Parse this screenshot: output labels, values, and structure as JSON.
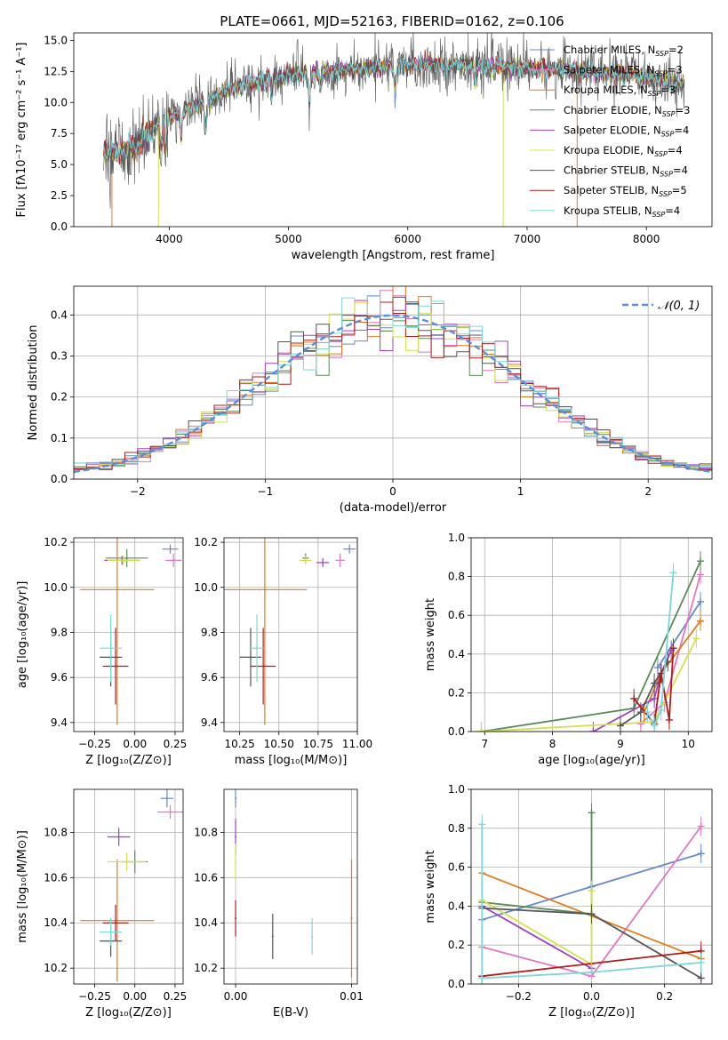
{
  "title": "PLATE=0661, MJD=52163, FIBERID=0162, z=0.106",
  "colors": {
    "Chabrier MILES": "#6688cc",
    "Salpeter MILES": "#e377c2",
    "Kroupa MILES": "#e07b20",
    "Chabrier ELODIE": "#5a8a5a",
    "Salpeter ELODIE": "#a040c0",
    "Kroupa ELODIE": "#d4e04a",
    "Chabrier STELIB": "#555555",
    "Salpeter STELIB": "#b01c1c",
    "Kroupa STELIB": "#7fd6d6"
  },
  "legend": [
    {
      "key": "Chabrier MILES",
      "label": "Chabrier MILES, N",
      "sub": "SSP",
      "tail": "=2"
    },
    {
      "key": "Salpeter MILES",
      "label": "Salpeter MILES, N",
      "sub": "SSP",
      "tail": "=3"
    },
    {
      "key": "Kroupa MILES",
      "label": "Kroupa MILES, N",
      "sub": "SSP",
      "tail": "=3"
    },
    {
      "key": "Chabrier ELODIE",
      "label": "Chabrier ELODIE, N",
      "sub": "SSP",
      "tail": "=3"
    },
    {
      "key": "Salpeter ELODIE",
      "label": "Salpeter ELODIE, N",
      "sub": "SSP",
      "tail": "=4"
    },
    {
      "key": "Kroupa ELODIE",
      "label": "Kroupa ELODIE, N",
      "sub": "SSP",
      "tail": "=4"
    },
    {
      "key": "Chabrier STELIB",
      "label": "Chabrier STELIB, N",
      "sub": "SSP",
      "tail": "=4"
    },
    {
      "key": "Salpeter STELIB",
      "label": "Salpeter STELIB, N",
      "sub": "SSP",
      "tail": "=5"
    },
    {
      "key": "Kroupa STELIB",
      "label": "Kroupa STELIB, N",
      "sub": "SSP",
      "tail": "=4"
    }
  ],
  "chart_data": [
    {
      "id": "spectrum",
      "type": "line",
      "xlabel": "wavelength [Angstrom, rest frame]",
      "ylabel": "Flux [fλ10⁻¹⁷ erg cm⁻² s⁻¹ A⁻¹]",
      "xlim": [
        3200,
        8550
      ],
      "ylim": [
        0,
        15.6
      ],
      "xticks": [
        4000,
        5000,
        6000,
        7000,
        8000
      ],
      "yticks": [
        0.0,
        2.5,
        5.0,
        7.5,
        10.0,
        12.5,
        15.0
      ],
      "grid": false,
      "continuum": [
        [
          3450,
          6.0
        ],
        [
          3700,
          6.3
        ],
        [
          3900,
          8.3
        ],
        [
          4100,
          9.3
        ],
        [
          4300,
          10.0
        ],
        [
          4500,
          11.0
        ],
        [
          4800,
          11.8
        ],
        [
          5100,
          12.3
        ],
        [
          5500,
          12.6
        ],
        [
          6000,
          13.0
        ],
        [
          6500,
          13.0
        ],
        [
          7000,
          12.8
        ],
        [
          7500,
          12.5
        ],
        [
          8000,
          12.1
        ],
        [
          8300,
          11.5
        ]
      ],
      "dips": [
        [
          3933,
          2.0
        ],
        [
          3968,
          2.0
        ],
        [
          4101,
          2.0
        ],
        [
          4305,
          2.5
        ],
        [
          4861,
          1.5
        ],
        [
          5175,
          2.5
        ],
        [
          5270,
          1.2
        ],
        [
          5892,
          2.0
        ],
        [
          6563,
          1.5
        ],
        [
          8542,
          1.0
        ]
      ],
      "drops": [
        [
          3520,
          "Kroupa MILES"
        ],
        [
          3910,
          "Kroupa ELODIE"
        ],
        [
          6800,
          "Kroupa ELODIE"
        ],
        [
          7420,
          "Kroupa MILES"
        ]
      ]
    },
    {
      "id": "residuals",
      "type": "histogram",
      "xlabel": "(data-model)/error",
      "ylabel": "Normed distribution",
      "xlim": [
        -2.5,
        2.5
      ],
      "ylim": [
        0,
        0.47
      ],
      "xticks": [
        -2,
        -1,
        0,
        1,
        2
      ],
      "yticks": [
        0.0,
        0.1,
        0.2,
        0.3,
        0.4
      ],
      "grid": true,
      "bins": 50,
      "reference": {
        "label": "𝒩(0, 1)",
        "mu": 0,
        "sigma": 1
      }
    },
    {
      "id": "age-Z",
      "type": "scatter",
      "xlabel": "Z [log₁₀(Z/Z⊙)]",
      "ylabel": "age  [log₁₀(age/yr)]",
      "xlim": [
        -0.38,
        0.3
      ],
      "ylim": [
        9.36,
        10.22
      ],
      "xticks": [
        -0.25,
        0.0,
        0.25
      ],
      "yticks": [
        9.4,
        9.6,
        9.8,
        10.0,
        10.2
      ],
      "grid": true,
      "points": [
        {
          "key": "Chabrier MILES",
          "x": 0.22,
          "y": 10.17,
          "xerr": 0.05,
          "yerr": 0.02
        },
        {
          "key": "Salpeter MILES",
          "x": 0.24,
          "y": 10.12,
          "xerr": 0.05,
          "yerr": 0.03
        },
        {
          "key": "Kroupa MILES",
          "x": -0.11,
          "y": 9.99,
          "xerr": 0.23,
          "yerr": 0.6
        },
        {
          "key": "Chabrier ELODIE",
          "x": -0.05,
          "y": 10.13,
          "xerr": 0.13,
          "yerr": 0.04
        },
        {
          "key": "Salpeter ELODIE",
          "x": -0.08,
          "y": 10.12,
          "xerr": 0.11,
          "yerr": 0.02
        },
        {
          "key": "Kroupa ELODIE",
          "x": -0.07,
          "y": 10.12,
          "xerr": 0.1,
          "yerr": 0.02
        },
        {
          "key": "Chabrier STELIB",
          "x": -0.15,
          "y": 9.69,
          "xerr": 0.07,
          "yerr": 0.13
        },
        {
          "key": "Salpeter STELIB",
          "x": -0.12,
          "y": 9.65,
          "xerr": 0.08,
          "yerr": 0.17
        },
        {
          "key": "Kroupa STELIB",
          "x": -0.15,
          "y": 9.73,
          "xerr": 0.07,
          "yerr": 0.15
        }
      ]
    },
    {
      "id": "age-mass",
      "type": "scatter",
      "xlabel": "mass [log₁₀(M/M⊙)]",
      "ylabel": "",
      "xlim": [
        10.15,
        11.0
      ],
      "ylim": [
        9.36,
        10.22
      ],
      "xticks": [
        10.25,
        10.5,
        10.75,
        11.0
      ],
      "yticks": [
        9.4,
        9.6,
        9.8,
        10.0,
        10.2
      ],
      "grid": true,
      "points": [
        {
          "key": "Chabrier MILES",
          "x": 10.95,
          "y": 10.17,
          "xerr": 0.04,
          "yerr": 0.02
        },
        {
          "key": "Salpeter MILES",
          "x": 10.89,
          "y": 10.12,
          "xerr": 0.03,
          "yerr": 0.03
        },
        {
          "key": "Kroupa MILES",
          "x": 10.41,
          "y": 9.99,
          "xerr": 0.27,
          "yerr": 0.6
        },
        {
          "key": "Chabrier ELODIE",
          "x": 10.67,
          "y": 10.13,
          "xerr": 0.02,
          "yerr": 0.02
        },
        {
          "key": "Salpeter ELODIE",
          "x": 10.78,
          "y": 10.11,
          "xerr": 0.04,
          "yerr": 0.02
        },
        {
          "key": "Kroupa ELODIE",
          "x": 10.67,
          "y": 10.12,
          "xerr": 0.04,
          "yerr": 0.02
        },
        {
          "key": "Chabrier STELIB",
          "x": 10.32,
          "y": 9.69,
          "xerr": 0.07,
          "yerr": 0.13
        },
        {
          "key": "Salpeter STELIB",
          "x": 10.4,
          "y": 9.65,
          "xerr": 0.08,
          "yerr": 0.17
        },
        {
          "key": "Kroupa STELIB",
          "x": 10.36,
          "y": 9.73,
          "xerr": 0.05,
          "yerr": 0.15
        }
      ]
    },
    {
      "id": "weight-age",
      "type": "line",
      "xlabel": "age  [log₁₀(age/yr)]",
      "ylabel": "mass weight",
      "xlim": [
        6.8,
        10.35
      ],
      "ylim": [
        0,
        1.0
      ],
      "xticks": [
        7,
        8,
        9,
        10
      ],
      "yticks": [
        0.0,
        0.2,
        0.4,
        0.6,
        0.8,
        1.0
      ],
      "grid": true,
      "series": [
        {
          "key": "Chabrier MILES",
          "points": [
            [
              9.55,
              0.33
            ],
            [
              10.18,
              0.67
            ]
          ]
        },
        {
          "key": "Salpeter MILES",
          "points": [
            [
              9.3,
              0.04
            ],
            [
              9.65,
              0.15
            ],
            [
              10.18,
              0.81
            ]
          ]
        },
        {
          "key": "Kroupa MILES",
          "points": [
            [
              9.35,
              0.1
            ],
            [
              9.6,
              0.3
            ],
            [
              10.18,
              0.57
            ]
          ]
        },
        {
          "key": "Chabrier ELODIE",
          "points": [
            [
              6.95,
              0.0
            ],
            [
              9.2,
              0.12
            ],
            [
              10.18,
              0.88
            ]
          ]
        },
        {
          "key": "Salpeter ELODIE",
          "points": [
            [
              8.6,
              0.0
            ],
            [
              9.5,
              0.17
            ],
            [
              9.6,
              0.3
            ],
            [
              9.75,
              0.42
            ]
          ]
        },
        {
          "key": "Kroupa ELODIE",
          "points": [
            [
              6.95,
              0.0
            ],
            [
              9.5,
              0.05
            ],
            [
              10.12,
              0.48
            ]
          ]
        },
        {
          "key": "Chabrier STELIB",
          "points": [
            [
              9.0,
              0.03
            ],
            [
              9.3,
              0.1
            ],
            [
              9.5,
              0.25
            ],
            [
              9.7,
              0.36
            ]
          ]
        },
        {
          "key": "Salpeter STELIB",
          "points": [
            [
              9.2,
              0.17
            ],
            [
              9.5,
              0.04
            ],
            [
              9.6,
              0.3
            ],
            [
              9.72,
              0.06
            ],
            [
              9.78,
              0.43
            ]
          ]
        },
        {
          "key": "Kroupa STELIB",
          "points": [
            [
              9.4,
              0.1
            ],
            [
              9.5,
              0.03
            ],
            [
              9.6,
              0.11
            ],
            [
              9.78,
              0.82
            ]
          ]
        }
      ]
    },
    {
      "id": "mass-Z",
      "type": "scatter",
      "xlabel": "Z [log₁₀(Z/Z⊙)]",
      "ylabel": "mass [log₁₀(M/M⊙)]",
      "xlim": [
        -0.38,
        0.3
      ],
      "ylim": [
        10.13,
        10.99
      ],
      "xticks": [
        -0.25,
        0.0,
        0.25
      ],
      "yticks": [
        10.2,
        10.4,
        10.6,
        10.8
      ],
      "grid": true,
      "points": [
        {
          "key": "Chabrier MILES",
          "x": 0.2,
          "y": 10.95,
          "xerr": 0.04,
          "yerr": 0.04
        },
        {
          "key": "Salpeter MILES",
          "x": 0.22,
          "y": 10.89,
          "xerr": 0.08,
          "yerr": 0.03
        },
        {
          "key": "Kroupa MILES",
          "x": -0.11,
          "y": 10.41,
          "xerr": 0.23,
          "yerr": 0.27
        },
        {
          "key": "Chabrier ELODIE",
          "x": 0.0,
          "y": 10.67,
          "xerr": 0.08,
          "yerr": 0.05
        },
        {
          "key": "Salpeter ELODIE",
          "x": -0.1,
          "y": 10.78,
          "xerr": 0.07,
          "yerr": 0.04
        },
        {
          "key": "Kroupa ELODIE",
          "x": -0.05,
          "y": 10.67,
          "xerr": 0.12,
          "yerr": 0.04
        },
        {
          "key": "Chabrier STELIB",
          "x": -0.15,
          "y": 10.32,
          "xerr": 0.07,
          "yerr": 0.07
        },
        {
          "key": "Salpeter STELIB",
          "x": -0.12,
          "y": 10.4,
          "xerr": 0.08,
          "yerr": 0.08
        },
        {
          "key": "Kroupa STELIB",
          "x": -0.15,
          "y": 10.36,
          "xerr": 0.07,
          "yerr": 0.06
        }
      ]
    },
    {
      "id": "mass-EBV",
      "type": "scatter",
      "xlabel": "E(B-V)",
      "ylabel": "",
      "xlim": [
        -0.001,
        0.0105
      ],
      "ylim": [
        10.13,
        10.99
      ],
      "xticks": [
        0.0,
        0.01
      ],
      "xtick_labels": [
        "0.00",
        "0.01"
      ],
      "yticks": [
        10.2,
        10.4,
        10.6,
        10.8
      ],
      "grid": true,
      "points": [
        {
          "key": "Chabrier MILES",
          "x": 0.0,
          "y": 10.95,
          "xerr": 0,
          "yerr": 0.04
        },
        {
          "key": "Salpeter ELODIE",
          "x": 0.0,
          "y": 10.78,
          "xerr": 0,
          "yerr": 0.08
        },
        {
          "key": "Kroupa ELODIE",
          "x": 0.0,
          "y": 10.67,
          "xerr": 0,
          "yerr": 0.08
        },
        {
          "key": "Salpeter STELIB",
          "x": 0.0,
          "y": 10.42,
          "xerr": 0,
          "yerr": 0.08
        },
        {
          "key": "Chabrier STELIB",
          "x": 0.0032,
          "y": 10.34,
          "xerr": 0,
          "yerr": 0.1
        },
        {
          "key": "Kroupa STELIB",
          "x": 0.0066,
          "y": 10.34,
          "xerr": 0,
          "yerr": 0.08
        },
        {
          "key": "Kroupa MILES",
          "x": 0.01,
          "y": 10.42,
          "xerr": 0,
          "yerr": 0.26
        }
      ]
    },
    {
      "id": "weight-Z",
      "type": "line",
      "xlabel": "Z [log₁₀(Z/Z⊙)]",
      "ylabel": "mass weight",
      "xlim": [
        -0.33,
        0.33
      ],
      "ylim": [
        0,
        1.0
      ],
      "xticks": [
        -0.2,
        0.0,
        0.2
      ],
      "yticks": [
        0.0,
        0.2,
        0.4,
        0.6,
        0.8,
        1.0
      ],
      "grid": true,
      "series": [
        {
          "key": "Chabrier MILES",
          "points": [
            [
              -0.3,
              0.33
            ],
            [
              0.0,
              0.5
            ],
            [
              0.3,
              0.67
            ]
          ]
        },
        {
          "key": "Salpeter MILES",
          "points": [
            [
              -0.3,
              0.19
            ],
            [
              0.0,
              0.04
            ],
            [
              0.3,
              0.81
            ]
          ]
        },
        {
          "key": "Kroupa MILES",
          "points": [
            [
              -0.3,
              0.57
            ],
            [
              0.3,
              0.13
            ]
          ]
        },
        {
          "key": "Chabrier ELODIE",
          "points": [
            [
              -0.3,
              0.42
            ],
            [
              0.0,
              0.36
            ],
            [
              0.0,
              0.88
            ]
          ]
        },
        {
          "key": "Salpeter ELODIE",
          "points": [
            [
              -0.3,
              0.4
            ],
            [
              0.0,
              0.08
            ]
          ]
        },
        {
          "key": "Kroupa ELODIE",
          "points": [
            [
              -0.3,
              0.43
            ],
            [
              0.0,
              0.1
            ],
            [
              0.0,
              0.48
            ]
          ]
        },
        {
          "key": "Chabrier STELIB",
          "points": [
            [
              -0.3,
              0.39
            ],
            [
              0.0,
              0.36
            ],
            [
              0.3,
              0.03
            ]
          ]
        },
        {
          "key": "Salpeter STELIB",
          "points": [
            [
              -0.3,
              0.04
            ],
            [
              0.3,
              0.17
            ]
          ]
        },
        {
          "key": "Kroupa STELIB",
          "points": [
            [
              -0.3,
              0.82
            ],
            [
              -0.3,
              0.03
            ],
            [
              0.0,
              0.06
            ],
            [
              0.3,
              0.11
            ]
          ]
        }
      ]
    }
  ]
}
